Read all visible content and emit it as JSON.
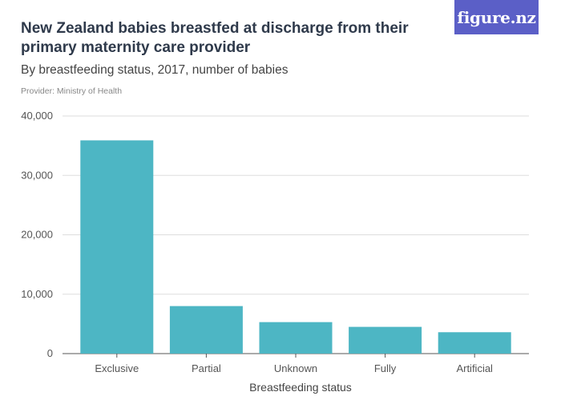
{
  "header": {
    "title": "New Zealand babies breastfed at discharge from their primary maternity care provider",
    "subtitle": "By breastfeeding status, 2017, number of babies",
    "provider": "Provider: Ministry of Health",
    "logo_text": "figure.nz"
  },
  "colors": {
    "bar": "#4db6c4",
    "grid": "#dddddd",
    "axis": "#555555",
    "logo_bg": "#5b5fc7"
  },
  "chart_data": {
    "type": "bar",
    "title": "New Zealand babies breastfed at discharge from their primary maternity care provider",
    "subtitle": "By breastfeeding status, 2017, number of babies",
    "xlabel": "Breastfeeding status",
    "ylabel": "",
    "categories": [
      "Exclusive",
      "Partial",
      "Unknown",
      "Fully",
      "Artificial"
    ],
    "values": [
      35900,
      8000,
      5300,
      4500,
      3600
    ],
    "ylim": [
      0,
      40000
    ],
    "yticks": [
      0,
      10000,
      20000,
      30000,
      40000
    ],
    "ytick_labels": [
      "0",
      "10,000",
      "20,000",
      "30,000",
      "40,000"
    ],
    "grid": true,
    "legend": "none"
  }
}
